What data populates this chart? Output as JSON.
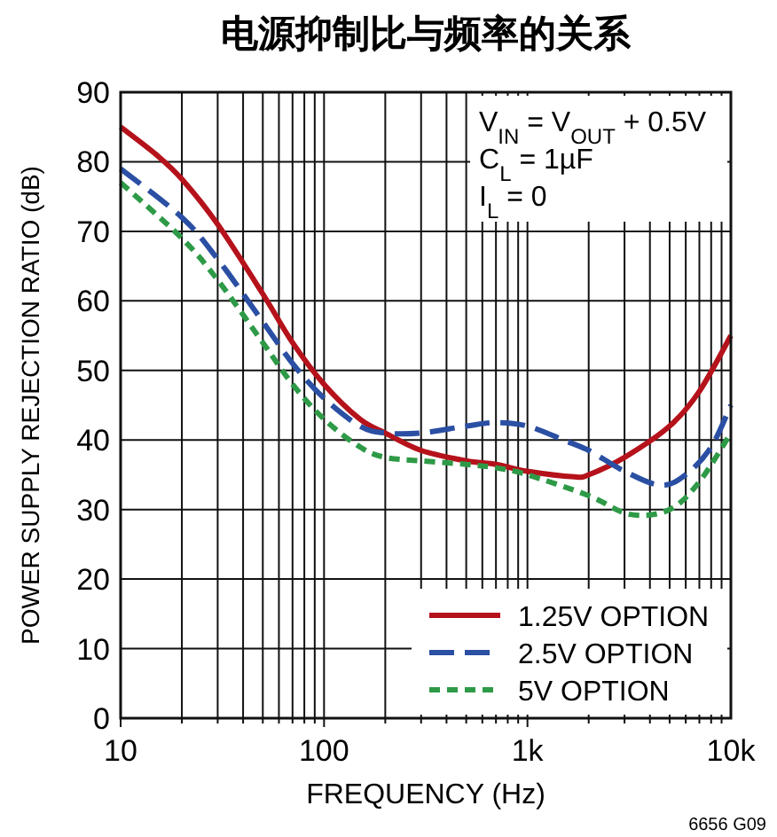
{
  "chart_data": {
    "type": "line",
    "title": "电源抑制比与频率的关系",
    "xlabel": "FREQUENCY (Hz)",
    "ylabel": "POWER SUPPLY REJECTION RATIO (dB)",
    "log": "x",
    "xlim": [
      10,
      10000
    ],
    "xticks": [
      10,
      100,
      {
        "value": 1000,
        "label": "1k"
      },
      {
        "value": 10000,
        "label": "10k"
      }
    ],
    "ylim": [
      0,
      90
    ],
    "yticks": [
      0,
      10,
      20,
      30,
      40,
      50,
      60,
      70,
      80,
      90
    ],
    "grid": true,
    "legend": "bottom right",
    "marker": "none",
    "annotations": [
      "V$_{IN}$ = V$_{OUT}$ + 0.5V",
      "C$_{L}$ = 1µF",
      "I$_{L}$ = 0",
      "6656 G09"
    ],
    "series": [
      {
        "name": "1.25V OPTION",
        "color": "#b5121b",
        "line_style": "solid",
        "x": [
          10,
          15,
          20,
          30,
          50,
          70,
          100,
          150,
          200,
          300,
          500,
          700,
          1000,
          1700,
          2000,
          3000,
          5000,
          7000,
          10000
        ],
        "values": [
          85,
          81,
          77.5,
          71,
          61,
          54,
          48,
          43,
          41,
          38.5,
          37,
          36.5,
          35.5,
          34.7,
          35,
          37.5,
          42,
          47,
          55
        ]
      },
      {
        "name": "2.5V OPTION",
        "color": "#2a4fa3",
        "line_style": "dashed",
        "x": [
          10,
          20,
          30,
          50,
          70,
          100,
          150,
          200,
          300,
          500,
          700,
          1000,
          1500,
          2000,
          3000,
          4500,
          6000,
          8000,
          10000
        ],
        "values": [
          79,
          72,
          66,
          57,
          51,
          46,
          42,
          41,
          41,
          42,
          42.5,
          42,
          40,
          38.5,
          35.5,
          33.5,
          35,
          39,
          45
        ]
      },
      {
        "name": "5V OPTION",
        "color": "#2e9a47",
        "line_style": "dotted",
        "x": [
          10,
          20,
          30,
          50,
          70,
          100,
          150,
          200,
          300,
          500,
          700,
          1000,
          2000,
          3200,
          5000,
          7000,
          10000
        ],
        "values": [
          77,
          69,
          63,
          54,
          48,
          43,
          39,
          37.5,
          37,
          36.5,
          36,
          35,
          32,
          29.3,
          30,
          34,
          41
        ]
      }
    ]
  }
}
